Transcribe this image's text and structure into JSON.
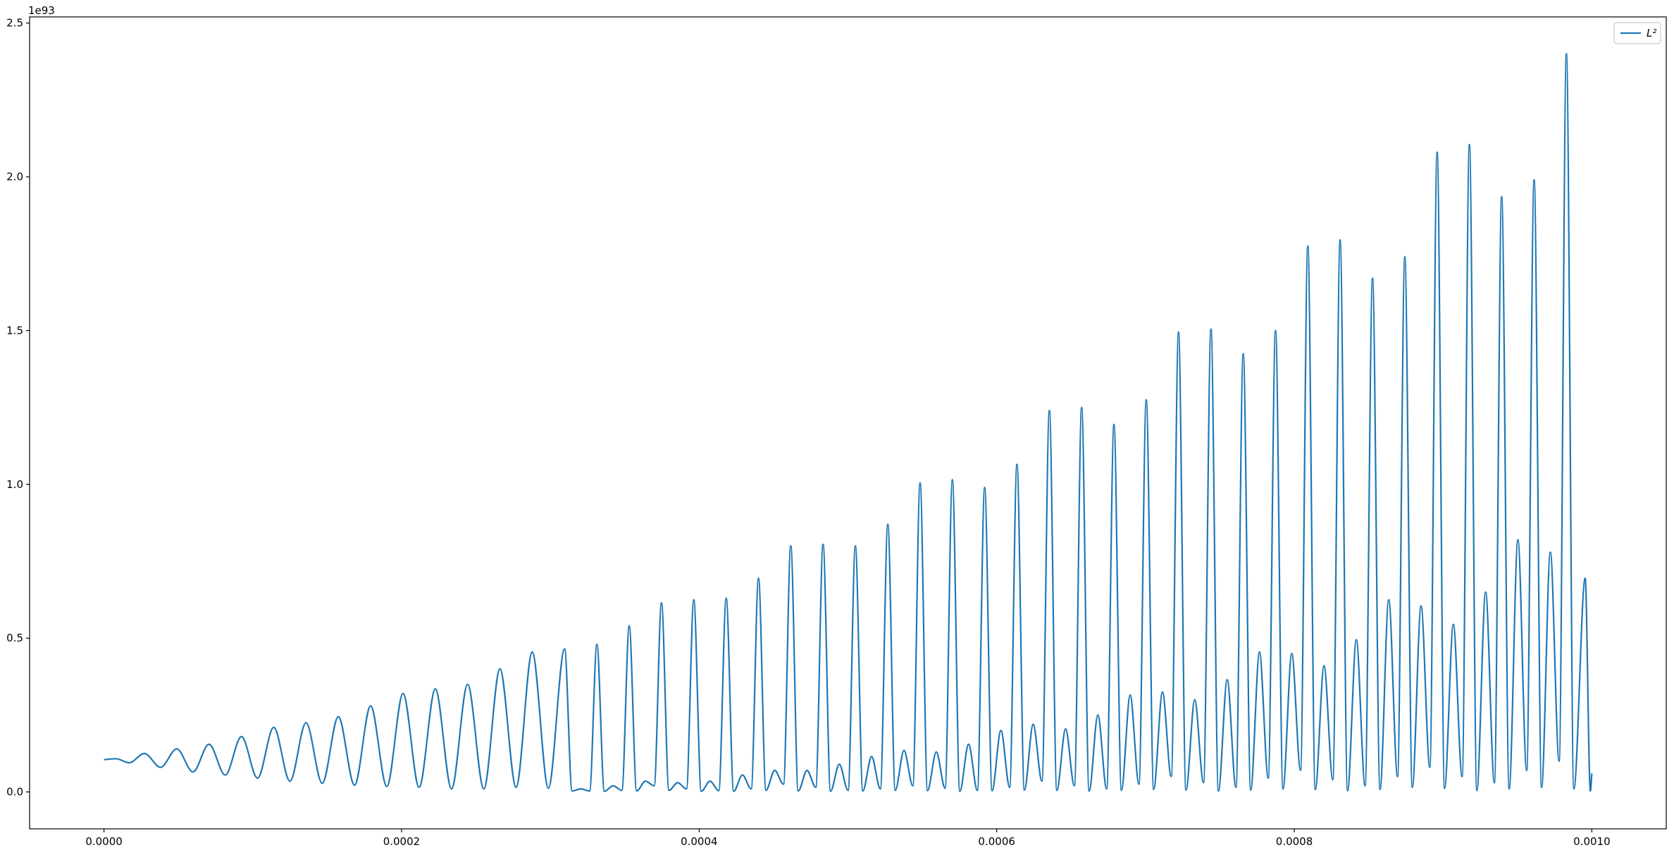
{
  "chart_data": {
    "type": "line",
    "offset_text": "1e93",
    "legend": "upper right",
    "xlim": [
      -5e-05,
      0.00105
    ],
    "ylim": [
      -0.12,
      2.52
    ],
    "xticks": [
      {
        "value": 0,
        "label": "0.0000"
      },
      {
        "value": 0.0002,
        "label": "0.0002"
      },
      {
        "value": 0.0004,
        "label": "0.0004"
      },
      {
        "value": 0.0006,
        "label": "0.0006"
      },
      {
        "value": 0.0008,
        "label": "0.0008"
      },
      {
        "value": 0.001,
        "label": "0.0010"
      }
    ],
    "yticks": [
      {
        "value": 0,
        "label": "0.0"
      },
      0.5,
      {
        "value": 1,
        "label": "1.0"
      },
      1.5,
      {
        "value": 2,
        "label": "2.0"
      },
      2.5
    ],
    "x": [
      0,
      8e-06,
      1.7e-05,
      2.72e-05,
      3.8e-05,
      4.89e-05,
      5.98e-05,
      7.06e-05,
      8.15e-05,
      9.24e-05,
      0.0001032,
      0.0001141,
      0.000125,
      0.0001358,
      0.0001467,
      0.0001575,
      0.0001684,
      0.0001792,
      0.0001901,
      0.000201,
      0.0002118,
      0.0002227,
      0.0002336,
      0.0002444,
      0.0002553,
      0.0002661,
      0.000277,
      0.0002878,
      0.0002987,
      0.0003096,
      0.0003146,
      0.0003205,
      0.0003264,
      0.0003313,
      0.0003363,
      0.0003422,
      0.0003481,
      0.000353,
      0.000358,
      0.0003639,
      0.0003698,
      0.0003747,
      0.0003797,
      0.0003856,
      0.0003915,
      0.0003964,
      0.0004014,
      0.0004073,
      0.0004132,
      0.0004182,
      0.0004232,
      0.0004291,
      0.000435,
      0.0004399,
      0.0004449,
      0.0004508,
      0.0004567,
      0.0004616,
      0.0004666,
      0.0004725,
      0.0004784,
      0.0004833,
      0.0004883,
      0.0004942,
      0.0005001,
      0.000505,
      0.00051,
      0.0005159,
      0.0005218,
      0.0005268,
      0.0005318,
      0.0005377,
      0.0005436,
      0.0005485,
      0.0005535,
      0.0005594,
      0.0005653,
      0.0005702,
      0.0005752,
      0.0005811,
      0.000587,
      0.0005919,
      0.0005969,
      0.0006028,
      0.0006087,
      0.0006136,
      0.0006186,
      0.0006245,
      0.0006304,
      0.0006354,
      0.0006404,
      0.0006463,
      0.0006522,
      0.0006571,
      0.0006621,
      0.000668,
      0.0006739,
      0.0006788,
      0.0006838,
      0.0006897,
      0.0006956,
      0.0007005,
      0.0007055,
      0.0007114,
      0.0007173,
      0.0007222,
      0.0007272,
      0.0007331,
      0.000739,
      0.000744,
      0.000749,
      0.0007549,
      0.0007608,
      0.0007657,
      0.0007707,
      0.0007766,
      0.0007825,
      0.0007874,
      0.0007924,
      0.0007983,
      0.0008042,
      0.0008091,
      0.0008141,
      0.00082,
      0.0008259,
      0.0008308,
      0.0008358,
      0.0008417,
      0.0008476,
      0.0008526,
      0.0008576,
      0.0008635,
      0.0008694,
      0.0008743,
      0.0008793,
      0.0008852,
      0.0008911,
      0.000896,
      0.000901,
      0.0009069,
      0.0009128,
      0.0009177,
      0.0009227,
      0.0009286,
      0.0009345,
      0.0009394,
      0.0009444,
      0.0009503,
      0.0009562,
      0.0009612,
      0.0009662,
      0.0009721,
      0.000978,
      0.0009829,
      0.0009879,
      0.0009955,
      0.000999,
      0.001
    ],
    "series": [
      {
        "name": "L²",
        "color": "#1f77b4",
        "values": [
          0.105,
          0.108,
          0.095,
          0.125,
          0.08,
          0.14,
          0.065,
          0.155,
          0.055,
          0.18,
          0.045,
          0.21,
          0.035,
          0.225,
          0.028,
          0.245,
          0.022,
          0.28,
          0.018,
          0.32,
          0.015,
          0.335,
          0.01,
          0.35,
          0.01,
          0.4,
          0.015,
          0.455,
          0.012,
          0.465,
          0.003,
          0.01,
          0.003,
          0.48,
          0.002,
          0.02,
          0.005,
          0.54,
          0.003,
          0.035,
          0.02,
          0.615,
          0.005,
          0.03,
          0.01,
          0.625,
          0.002,
          0.035,
          0.004,
          0.63,
          0.002,
          0.055,
          0.01,
          0.695,
          0.005,
          0.07,
          0.025,
          0.8,
          0.003,
          0.07,
          0.015,
          0.805,
          0.002,
          0.09,
          0.005,
          0.8,
          0.003,
          0.115,
          0.01,
          0.87,
          0.005,
          0.135,
          0.02,
          1.005,
          0.004,
          0.13,
          0.012,
          1.015,
          0.002,
          0.155,
          0.005,
          0.99,
          0.004,
          0.2,
          0.015,
          1.065,
          0.006,
          0.22,
          0.035,
          1.24,
          0.005,
          0.205,
          0.02,
          1.25,
          0.003,
          0.25,
          0.01,
          1.195,
          0.005,
          0.315,
          0.025,
          1.275,
          0.008,
          0.325,
          0.05,
          1.495,
          0.006,
          0.3,
          0.03,
          1.505,
          0.003,
          0.365,
          0.015,
          1.425,
          0.006,
          0.455,
          0.045,
          1.5,
          0.01,
          0.45,
          0.07,
          1.775,
          0.008,
          0.41,
          0.04,
          1.795,
          0.004,
          0.495,
          0.02,
          1.67,
          0.008,
          0.625,
          0.05,
          1.74,
          0.015,
          0.605,
          0.08,
          2.08,
          0.012,
          0.545,
          0.05,
          2.105,
          0.005,
          0.65,
          0.03,
          1.935,
          0.01,
          0.82,
          0.07,
          1.99,
          0.015,
          0.78,
          0.1,
          2.4,
          0.01,
          0.695,
          0.003,
          0.06
        ]
      }
    ]
  }
}
